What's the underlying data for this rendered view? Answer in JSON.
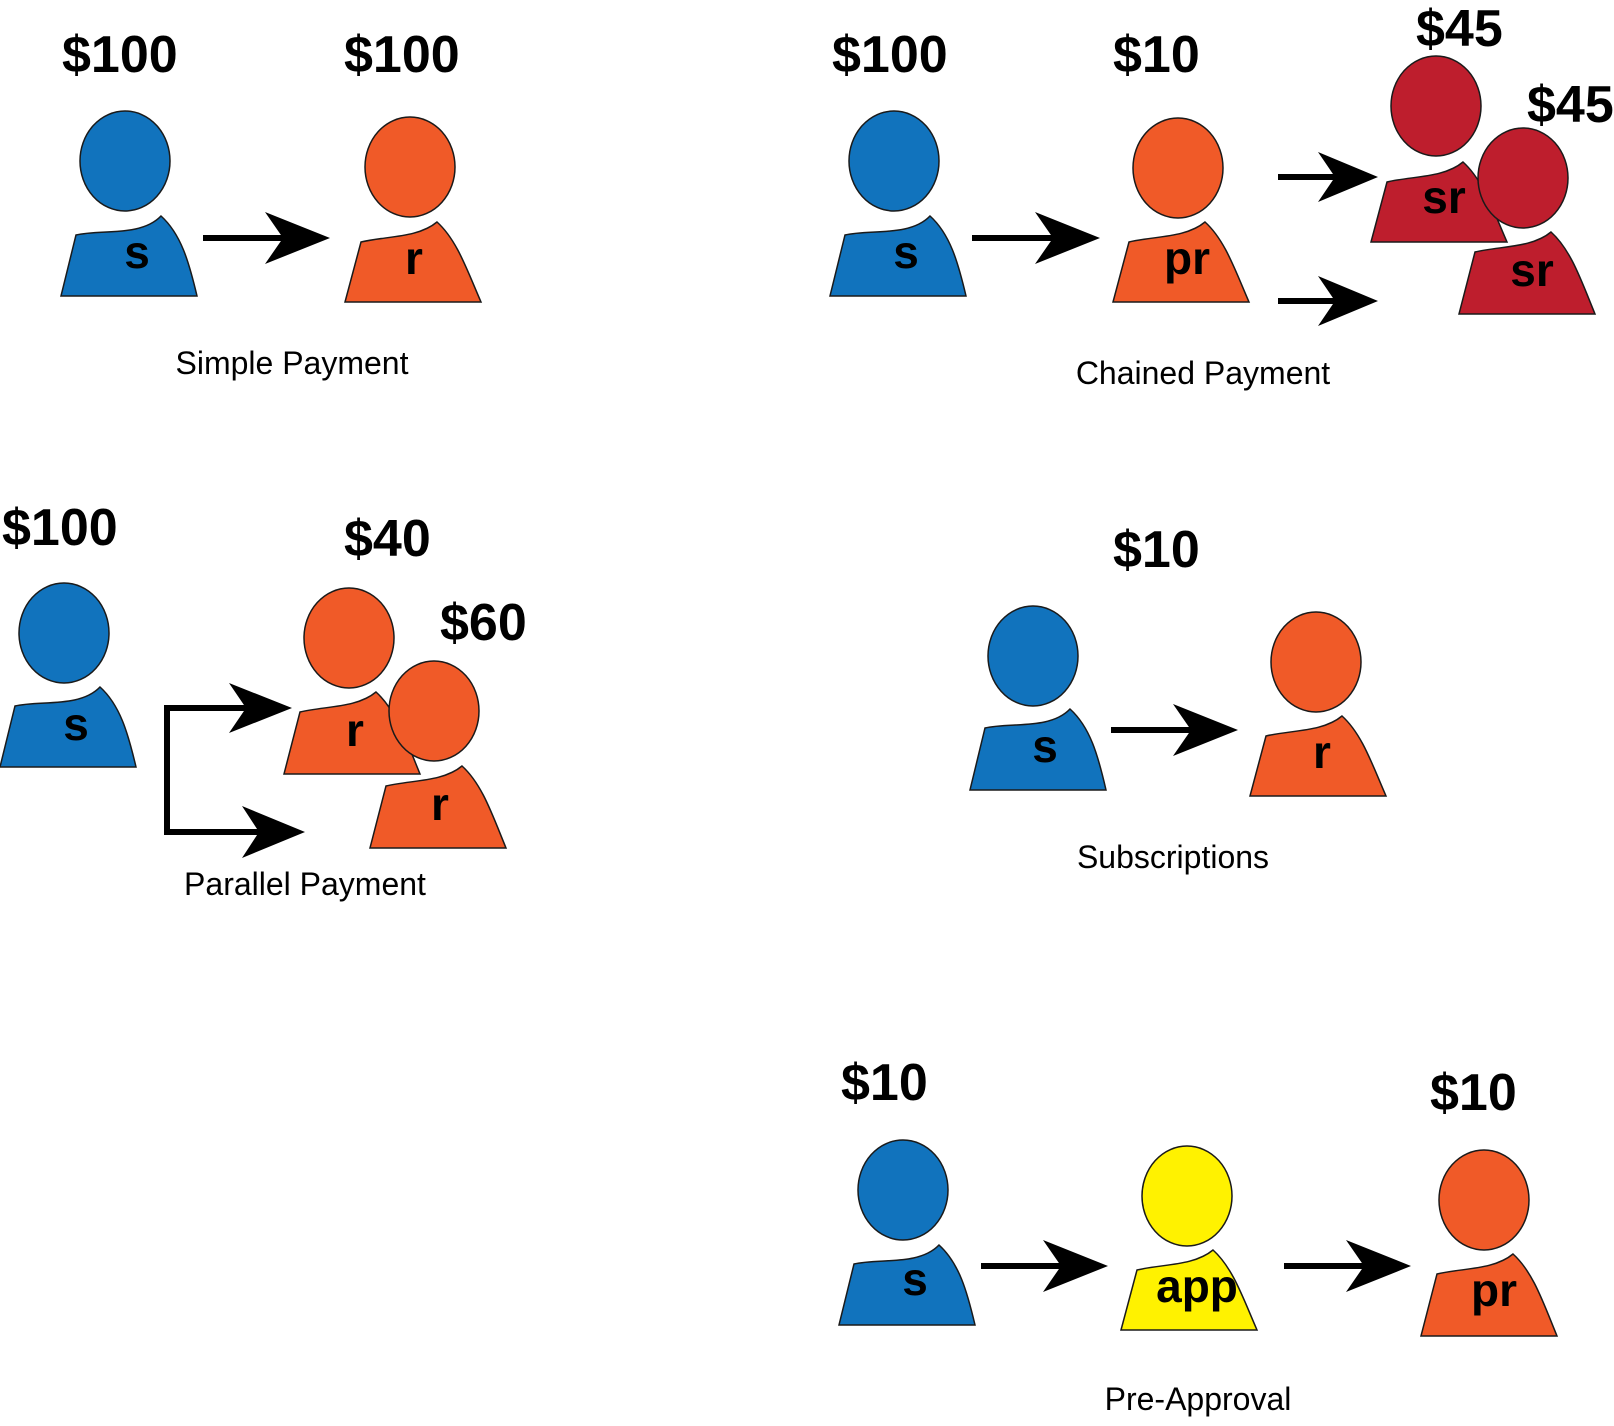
{
  "colors": {
    "sender": "#1173bd",
    "receiver": "#f05a28",
    "secondary_receiver": "#be1e2d",
    "app": "#fff200",
    "arrow": "#000000"
  },
  "simple": {
    "caption": "Simple Payment",
    "sender_amount": "$100",
    "sender_label": "s",
    "receiver_amount": "$100",
    "receiver_label": "r"
  },
  "chained": {
    "caption": "Chained Payment",
    "sender_amount": "$100",
    "sender_label": "s",
    "primary_amount": "$10",
    "primary_label": "pr",
    "secondary1_amount": "$45",
    "secondary1_label": "sr",
    "secondary2_amount": "$45",
    "secondary2_label": "sr"
  },
  "parallel": {
    "caption": "Parallel Payment",
    "sender_amount": "$100",
    "sender_label": "s",
    "receiver1_amount": "$40",
    "receiver1_label": "r",
    "receiver2_amount": "$60",
    "receiver2_label": "r"
  },
  "subscriptions": {
    "caption": "Subscriptions",
    "amount": "$10",
    "sender_label": "s",
    "receiver_label": "r"
  },
  "preapproval": {
    "caption": "Pre-Approval",
    "sender_amount": "$10",
    "sender_label": "s",
    "app_label": "app",
    "receiver_amount": "$10",
    "receiver_label": "pr"
  }
}
